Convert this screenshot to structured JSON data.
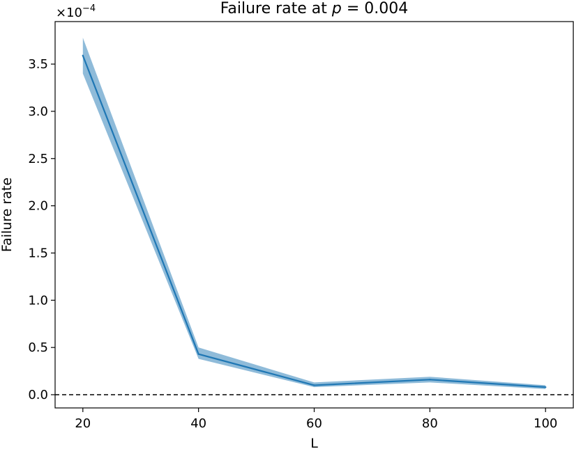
{
  "chart_data": {
    "type": "line",
    "title": "Failure rate at p = 0.004",
    "title_parts": {
      "prefix": "Failure rate at ",
      "variable": "p",
      "suffix": " = 0.004"
    },
    "xlabel": "L",
    "ylabel": "Failure rate",
    "scale_label": {
      "base": "×10",
      "exponent": "−4"
    },
    "x": [
      20,
      40,
      60,
      80,
      100
    ],
    "x_ticks": [
      "20",
      "40",
      "60",
      "80",
      "100"
    ],
    "xlim": [
      15.2,
      104.8
    ],
    "ylim": [
      -0.14,
      3.95
    ],
    "y_ticks": [
      0.0,
      0.5,
      1.0,
      1.5,
      2.0,
      2.5,
      3.0,
      3.5
    ],
    "y_tick_labels": [
      "0.0",
      "0.5",
      "1.0",
      "1.5",
      "2.0",
      "2.5",
      "3.0",
      "3.5"
    ],
    "y_scale": "1e-4",
    "series": [
      {
        "values": [
          3.59,
          0.43,
          0.1,
          0.16,
          0.08
        ],
        "lower": [
          3.4,
          0.38,
          0.08,
          0.13,
          0.06
        ],
        "upper": [
          3.78,
          0.5,
          0.13,
          0.19,
          0.1
        ],
        "color": "#1f77b4",
        "band_color": "#1f77b4"
      }
    ],
    "reference_line": {
      "y": 0.0,
      "style": "dashed",
      "color": "#000000"
    },
    "grid": false
  }
}
